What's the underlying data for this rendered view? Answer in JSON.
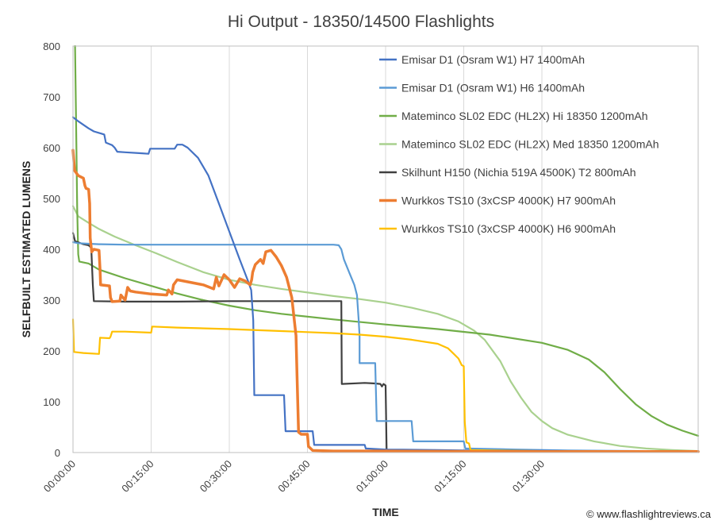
{
  "chart_data": {
    "type": "line",
    "title": "Hi Output - 18350/14500 Flashlights",
    "xlabel": "TIME",
    "ylabel": "SELFBUILT ESTIMATED LUMENS",
    "xlim": [
      0,
      120
    ],
    "ylim": [
      0,
      800
    ],
    "x_unit": "minutes",
    "x_ticks": [
      {
        "value": 0,
        "label": "00:00:00"
      },
      {
        "value": 15,
        "label": "00:15:00"
      },
      {
        "value": 30,
        "label": "00:30:00"
      },
      {
        "value": 45,
        "label": "00:45:00"
      },
      {
        "value": 60,
        "label": "01:00:00"
      },
      {
        "value": 75,
        "label": "01:15:00"
      },
      {
        "value": 90,
        "label": "01:30:00"
      }
    ],
    "y_ticks": [
      0,
      100,
      200,
      300,
      400,
      500,
      600,
      700,
      800
    ],
    "grid": "vertical",
    "legend_position": "top-right",
    "credit": "© www.flashlightreviews.ca",
    "series": [
      {
        "name": "Emisar D1 (Osram W1) H7 1400mAh",
        "color": "#4472C4",
        "points": [
          [
            0,
            660
          ],
          [
            1,
            652
          ],
          [
            2,
            645
          ],
          [
            3,
            638
          ],
          [
            4,
            632
          ],
          [
            5,
            629
          ],
          [
            6,
            626
          ],
          [
            6.3,
            610
          ],
          [
            7,
            607
          ],
          [
            7.5,
            605
          ],
          [
            8,
            600
          ],
          [
            8.5,
            592
          ],
          [
            10,
            591
          ],
          [
            13,
            589
          ],
          [
            14.5,
            588
          ],
          [
            14.8,
            598
          ],
          [
            18,
            598
          ],
          [
            19.5,
            598
          ],
          [
            20,
            606
          ],
          [
            21,
            606
          ],
          [
            22,
            600
          ],
          [
            24,
            580
          ],
          [
            26,
            545
          ],
          [
            28,
            490
          ],
          [
            30,
            435
          ],
          [
            32,
            380
          ],
          [
            33.5,
            340
          ],
          [
            34.2,
            320
          ],
          [
            34.6,
            260
          ],
          [
            34.8,
            113
          ],
          [
            40.5,
            113
          ],
          [
            40.8,
            42
          ],
          [
            46,
            42
          ],
          [
            46.3,
            15
          ],
          [
            56,
            15
          ],
          [
            56.2,
            8
          ],
          [
            60,
            6
          ],
          [
            70,
            5
          ],
          [
            75,
            4
          ],
          [
            85,
            4
          ],
          [
            95,
            3
          ],
          [
            110,
            3
          ],
          [
            120,
            3
          ]
        ]
      },
      {
        "name": "Emisar D1 (Osram W1) H6 1400mAh",
        "color": "#5B9BD5",
        "points": [
          [
            0,
            414
          ],
          [
            1,
            412
          ],
          [
            3,
            411
          ],
          [
            5,
            410
          ],
          [
            10,
            409
          ],
          [
            20,
            409
          ],
          [
            30,
            409
          ],
          [
            40,
            409
          ],
          [
            50,
            409
          ],
          [
            51,
            408
          ],
          [
            51.5,
            400
          ],
          [
            52,
            380
          ],
          [
            53,
            355
          ],
          [
            54,
            330
          ],
          [
            54.5,
            310
          ],
          [
            54.8,
            265
          ],
          [
            55,
            230
          ],
          [
            55,
            176
          ],
          [
            58,
            176
          ],
          [
            58.3,
            62
          ],
          [
            65,
            62
          ],
          [
            65.3,
            22
          ],
          [
            75,
            22
          ],
          [
            75.3,
            8
          ],
          [
            85,
            6
          ],
          [
            95,
            4
          ],
          [
            110,
            3
          ],
          [
            120,
            3
          ]
        ]
      },
      {
        "name": "Mateminco SL02 EDC (HL2X) Hi 18350 1200mAh",
        "color": "#70AD47",
        "points": [
          [
            0.4,
            800
          ],
          [
            0.6,
            650
          ],
          [
            0.8,
            480
          ],
          [
            1,
            390
          ],
          [
            1.2,
            376
          ],
          [
            3,
            372
          ],
          [
            5,
            360
          ],
          [
            10,
            343
          ],
          [
            15,
            328
          ],
          [
            20,
            313
          ],
          [
            25,
            300
          ],
          [
            30,
            289
          ],
          [
            35,
            280
          ],
          [
            40,
            273
          ],
          [
            50,
            262
          ],
          [
            60,
            252
          ],
          [
            70,
            243
          ],
          [
            80,
            232
          ],
          [
            90,
            216
          ],
          [
            95,
            202
          ],
          [
            99,
            183
          ],
          [
            102,
            158
          ],
          [
            105,
            125
          ],
          [
            108,
            95
          ],
          [
            111,
            72
          ],
          [
            114,
            55
          ],
          [
            117,
            43
          ],
          [
            120,
            33
          ]
        ]
      },
      {
        "name": "Mateminco SL02 EDC (HL2X) Med 18350 1200mAh",
        "color": "#A9D18E",
        "points": [
          [
            0,
            485
          ],
          [
            1,
            465
          ],
          [
            3,
            452
          ],
          [
            5,
            440
          ],
          [
            8,
            425
          ],
          [
            12,
            408
          ],
          [
            16,
            392
          ],
          [
            20,
            375
          ],
          [
            25,
            355
          ],
          [
            30,
            340
          ],
          [
            35,
            330
          ],
          [
            40,
            322
          ],
          [
            45,
            315
          ],
          [
            50,
            308
          ],
          [
            55,
            302
          ],
          [
            60,
            295
          ],
          [
            65,
            285
          ],
          [
            70,
            273
          ],
          [
            74,
            258
          ],
          [
            77,
            240
          ],
          [
            79,
            222
          ],
          [
            82,
            180
          ],
          [
            84,
            140
          ],
          [
            86,
            108
          ],
          [
            88,
            80
          ],
          [
            90,
            62
          ],
          [
            92,
            48
          ],
          [
            95,
            35
          ],
          [
            100,
            22
          ],
          [
            105,
            13
          ],
          [
            110,
            8
          ],
          [
            115,
            5
          ],
          [
            120,
            3
          ]
        ]
      },
      {
        "name": "Skilhunt H150 (Nichia 519A 4500K) T2 800mAh",
        "color": "#404040",
        "points": [
          [
            0,
            432
          ],
          [
            0.4,
            416
          ],
          [
            2,
            410
          ],
          [
            3,
            408
          ],
          [
            3.5,
            403
          ],
          [
            3.8,
            330
          ],
          [
            4,
            298
          ],
          [
            10,
            297
          ],
          [
            20,
            297
          ],
          [
            30,
            298
          ],
          [
            40,
            298
          ],
          [
            48,
            298
          ],
          [
            51.5,
            298
          ],
          [
            51.6,
            135
          ],
          [
            56,
            137
          ],
          [
            58,
            136
          ],
          [
            59,
            135
          ],
          [
            59.3,
            130
          ],
          [
            59.6,
            135
          ],
          [
            60,
            132
          ],
          [
            60.2,
            4
          ],
          [
            65,
            3
          ],
          [
            80,
            3
          ],
          [
            100,
            3
          ],
          [
            120,
            3
          ]
        ]
      },
      {
        "name": "Wurkkos TS10 (3xCSP 4000K) H7 900mAh",
        "color": "#ED7D31",
        "points": [
          [
            0,
            595
          ],
          [
            0.3,
            555
          ],
          [
            1,
            545
          ],
          [
            2,
            540
          ],
          [
            2.3,
            525
          ],
          [
            2.5,
            520
          ],
          [
            3,
            518
          ],
          [
            3.2,
            490
          ],
          [
            3.3,
            422
          ],
          [
            3.6,
            395
          ],
          [
            4,
            400
          ],
          [
            5,
            398
          ],
          [
            5.2,
            360
          ],
          [
            5.3,
            330
          ],
          [
            7,
            328
          ],
          [
            7.2,
            305
          ],
          [
            7.5,
            297
          ],
          [
            9,
            298
          ],
          [
            9.2,
            310
          ],
          [
            10,
            300
          ],
          [
            10.5,
            325
          ],
          [
            11,
            318
          ],
          [
            12,
            316
          ],
          [
            15,
            312
          ],
          [
            18,
            310
          ],
          [
            18.3,
            320
          ],
          [
            19,
            312
          ],
          [
            19.3,
            330
          ],
          [
            20,
            340
          ],
          [
            25,
            330
          ],
          [
            27,
            322
          ],
          [
            27.5,
            345
          ],
          [
            28,
            328
          ],
          [
            29,
            350
          ],
          [
            30,
            340
          ],
          [
            31,
            325
          ],
          [
            32,
            342
          ],
          [
            33,
            338
          ],
          [
            34,
            330
          ],
          [
            34.3,
            340
          ],
          [
            34.5,
            355
          ],
          [
            35,
            370
          ],
          [
            36,
            380
          ],
          [
            36.5,
            372
          ],
          [
            37,
            395
          ],
          [
            38,
            398
          ],
          [
            39,
            385
          ],
          [
            40,
            368
          ],
          [
            41,
            345
          ],
          [
            42,
            305
          ],
          [
            42.4,
            268
          ],
          [
            42.8,
            230
          ],
          [
            43,
            150
          ],
          [
            43.3,
            40
          ],
          [
            43.8,
            36
          ],
          [
            45,
            36
          ],
          [
            45.2,
            12
          ],
          [
            46,
            4
          ],
          [
            50,
            3
          ],
          [
            60,
            3
          ],
          [
            80,
            2
          ],
          [
            100,
            2
          ],
          [
            120,
            2
          ]
        ]
      },
      {
        "name": "Wurkkos TS10 (3xCSP 4000K) H6 900mAh",
        "color": "#FFC000",
        "points": [
          [
            0,
            262
          ],
          [
            0.2,
            198
          ],
          [
            2,
            196
          ],
          [
            5,
            194
          ],
          [
            5.2,
            226
          ],
          [
            7,
            225
          ],
          [
            7.2,
            228
          ],
          [
            7.5,
            238
          ],
          [
            10,
            238
          ],
          [
            15,
            236
          ],
          [
            15.2,
            248
          ],
          [
            20,
            246
          ],
          [
            30,
            243
          ],
          [
            40,
            239
          ],
          [
            45,
            237
          ],
          [
            50,
            235
          ],
          [
            55,
            232
          ],
          [
            60,
            228
          ],
          [
            65,
            222
          ],
          [
            70,
            214
          ],
          [
            72,
            205
          ],
          [
            73,
            195
          ],
          [
            74,
            185
          ],
          [
            74.6,
            172
          ],
          [
            75,
            170
          ],
          [
            75.2,
            60
          ],
          [
            75.5,
            20
          ],
          [
            76,
            18
          ],
          [
            76.3,
            5
          ],
          [
            80,
            4
          ],
          [
            90,
            3
          ],
          [
            120,
            3
          ]
        ]
      }
    ]
  }
}
